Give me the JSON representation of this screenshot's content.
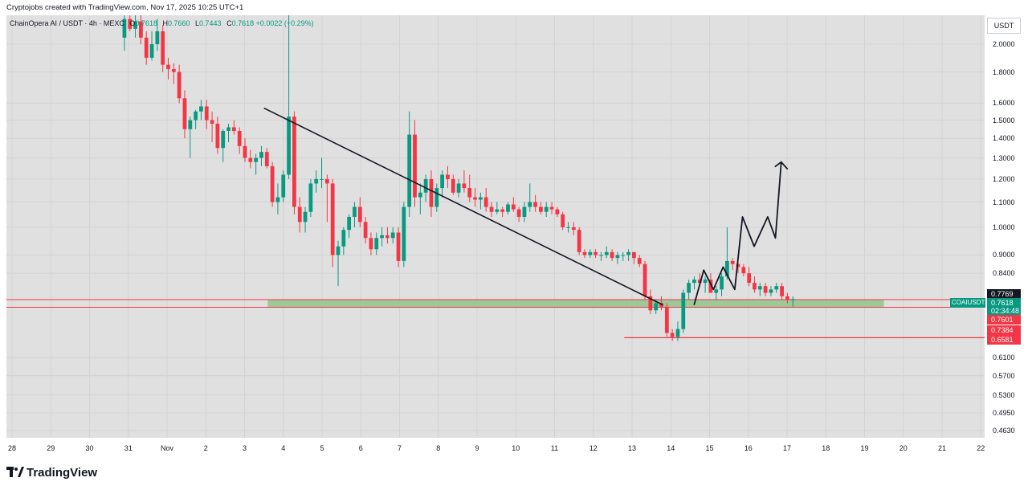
{
  "header": {
    "text": "Cryptojobs created with TradingView.com, Nov 17, 2025 10:25 UTC+1"
  },
  "legend": {
    "symbol": "ChainOpera AI / USDT · 4h · MEXC",
    "o_label": "O",
    "o_value": "0.7618",
    "h_label": "H",
    "h_value": "0.7660",
    "l_label": "L",
    "l_value": "0.7443",
    "c_label": "C",
    "c_value": "0.7618",
    "change": "+0.0022 (+0.29%)"
  },
  "currency": "USDT",
  "ticker_label": "COAIUSDT",
  "footer": {
    "brand": "TradingView"
  },
  "colors": {
    "up": "#089981",
    "down": "#f23645",
    "zone": "#8fc48a",
    "line": "#131722",
    "bg": "#e0e0e0"
  },
  "chart_data": {
    "type": "candlestick",
    "scale": "log",
    "title": "ChainOpera AI / USDT · 4h · MEXC",
    "ylim": [
      0.45,
      2.3
    ],
    "x_ticks": [
      "28",
      "29",
      "30",
      "31",
      "Nov",
      "2",
      "3",
      "4",
      "5",
      "6",
      "7",
      "8",
      "9",
      "10",
      "11",
      "12",
      "13",
      "14",
      "15",
      "16",
      "17",
      "18",
      "19",
      "20",
      "21",
      "22"
    ],
    "y_ticks": [
      "2.0000",
      "1.8000",
      "1.6000",
      "1.5000",
      "1.4000",
      "1.3000",
      "1.2000",
      "1.1000",
      "1.0000",
      "0.9000",
      "0.8400",
      "0.6100",
      "0.5700",
      "0.5300",
      "0.4950",
      "0.4630"
    ],
    "price_badges": [
      {
        "label": "0.7769",
        "value": 0.7769,
        "kind": "neutral"
      },
      {
        "label": "0.7618",
        "value": 0.7618,
        "kind": "current"
      },
      {
        "label": "02:34:48",
        "value": 0.7618,
        "kind": "countdown"
      },
      {
        "label": "0.7601",
        "value": 0.7601,
        "kind": "down"
      },
      {
        "label": "0.7384",
        "value": 0.7384,
        "kind": "down"
      },
      {
        "label": "0.6581",
        "value": 0.6581,
        "kind": "down"
      }
    ],
    "support_zone": {
      "from": 0.7384,
      "to": 0.7601
    },
    "support_line": 0.6581,
    "trendline": {
      "from": {
        "x": 6.5,
        "y": 1.57
      },
      "to": {
        "x": 16.8,
        "y": 0.745
      }
    },
    "projection": [
      {
        "x": 17.6,
        "y": 0.745
      },
      {
        "x": 17.85,
        "y": 0.85
      },
      {
        "x": 18.1,
        "y": 0.79
      },
      {
        "x": 18.35,
        "y": 0.86
      },
      {
        "x": 18.65,
        "y": 0.79
      },
      {
        "x": 18.85,
        "y": 1.04
      },
      {
        "x": 19.15,
        "y": 0.93
      },
      {
        "x": 19.5,
        "y": 1.04
      },
      {
        "x": 19.7,
        "y": 0.96
      },
      {
        "x": 19.85,
        "y": 1.28
      }
    ],
    "candles": [
      [
        2.05,
        2.3,
        1.95,
        2.2
      ],
      [
        2.2,
        2.28,
        2.1,
        2.12
      ],
      [
        2.12,
        2.25,
        2.05,
        2.18
      ],
      [
        2.18,
        2.3,
        2.0,
        2.05
      ],
      [
        2.05,
        2.1,
        1.85,
        1.9
      ],
      [
        1.9,
        2.1,
        1.88,
        2.0
      ],
      [
        2.0,
        2.2,
        1.95,
        2.1
      ],
      [
        2.1,
        2.15,
        1.8,
        1.85
      ],
      [
        1.85,
        1.9,
        1.75,
        1.82
      ],
      [
        1.82,
        1.86,
        1.72,
        1.8
      ],
      [
        1.8,
        1.85,
        1.6,
        1.63
      ],
      [
        1.63,
        1.68,
        1.4,
        1.45
      ],
      [
        1.45,
        1.52,
        1.3,
        1.5
      ],
      [
        1.5,
        1.56,
        1.45,
        1.55
      ],
      [
        1.55,
        1.62,
        1.5,
        1.58
      ],
      [
        1.58,
        1.62,
        1.45,
        1.5
      ],
      [
        1.5,
        1.55,
        1.38,
        1.48
      ],
      [
        1.48,
        1.52,
        1.32,
        1.35
      ],
      [
        1.35,
        1.45,
        1.28,
        1.44
      ],
      [
        1.44,
        1.48,
        1.38,
        1.46
      ],
      [
        1.46,
        1.5,
        1.42,
        1.44
      ],
      [
        1.44,
        1.46,
        1.32,
        1.36
      ],
      [
        1.36,
        1.4,
        1.28,
        1.3
      ],
      [
        1.3,
        1.34,
        1.25,
        1.28
      ],
      [
        1.28,
        1.32,
        1.22,
        1.3
      ],
      [
        1.3,
        1.36,
        1.26,
        1.33
      ],
      [
        1.33,
        1.35,
        1.25,
        1.26
      ],
      [
        1.26,
        1.28,
        1.08,
        1.1
      ],
      [
        1.1,
        1.18,
        1.05,
        1.12
      ],
      [
        1.12,
        1.24,
        1.1,
        1.22
      ],
      [
        1.22,
        2.3,
        1.2,
        1.52
      ],
      [
        1.52,
        1.55,
        1.05,
        1.08
      ],
      [
        1.08,
        1.12,
        0.98,
        1.02
      ],
      [
        1.02,
        1.08,
        0.98,
        1.06
      ],
      [
        1.06,
        1.2,
        1.04,
        1.18
      ],
      [
        1.18,
        1.24,
        1.14,
        1.2
      ],
      [
        1.2,
        1.3,
        1.16,
        1.2
      ],
      [
        1.2,
        1.22,
        1.02,
        1.18
      ],
      [
        1.18,
        1.2,
        0.86,
        0.9
      ],
      [
        0.9,
        0.95,
        0.8,
        0.93
      ],
      [
        0.93,
        1.0,
        0.9,
        0.99
      ],
      [
        0.99,
        1.05,
        0.96,
        1.04
      ],
      [
        1.04,
        1.1,
        1.0,
        1.08
      ],
      [
        1.08,
        1.12,
        1.0,
        1.02
      ],
      [
        1.02,
        1.04,
        0.94,
        0.96
      ],
      [
        0.96,
        0.98,
        0.9,
        0.92
      ],
      [
        0.92,
        0.98,
        0.9,
        0.96
      ],
      [
        0.96,
        1.0,
        0.93,
        0.97
      ],
      [
        0.97,
        1.0,
        0.94,
        0.96
      ],
      [
        0.96,
        1.0,
        0.94,
        0.98
      ],
      [
        0.98,
        1.0,
        0.86,
        0.88
      ],
      [
        0.88,
        1.1,
        0.86,
        1.08
      ],
      [
        1.08,
        1.55,
        1.04,
        1.42
      ],
      [
        1.42,
        1.5,
        1.08,
        1.12
      ],
      [
        1.12,
        1.18,
        1.05,
        1.14
      ],
      [
        1.14,
        1.22,
        1.1,
        1.2
      ],
      [
        1.2,
        1.24,
        1.04,
        1.08
      ],
      [
        1.08,
        1.18,
        1.06,
        1.16
      ],
      [
        1.16,
        1.24,
        1.12,
        1.22
      ],
      [
        1.22,
        1.26,
        1.16,
        1.2
      ],
      [
        1.2,
        1.22,
        1.13,
        1.14
      ],
      [
        1.14,
        1.2,
        1.12,
        1.18
      ],
      [
        1.18,
        1.24,
        1.14,
        1.16
      ],
      [
        1.16,
        1.22,
        1.1,
        1.12
      ],
      [
        1.12,
        1.16,
        1.08,
        1.11
      ],
      [
        1.11,
        1.14,
        1.07,
        1.12
      ],
      [
        1.12,
        1.16,
        1.06,
        1.08
      ],
      [
        1.08,
        1.1,
        1.04,
        1.06
      ],
      [
        1.06,
        1.1,
        1.05,
        1.07
      ],
      [
        1.07,
        1.08,
        1.04,
        1.06
      ],
      [
        1.06,
        1.1,
        1.05,
        1.09
      ],
      [
        1.09,
        1.12,
        1.06,
        1.07
      ],
      [
        1.07,
        1.08,
        1.02,
        1.04
      ],
      [
        1.04,
        1.1,
        1.02,
        1.08
      ],
      [
        1.08,
        1.18,
        1.06,
        1.1
      ],
      [
        1.1,
        1.13,
        1.06,
        1.08
      ],
      [
        1.08,
        1.1,
        1.05,
        1.06
      ],
      [
        1.06,
        1.1,
        1.04,
        1.08
      ],
      [
        1.08,
        1.1,
        1.05,
        1.07
      ],
      [
        1.07,
        1.08,
        1.04,
        1.05
      ],
      [
        1.05,
        1.06,
        0.99,
        1.0
      ],
      [
        1.0,
        1.02,
        0.98,
        1.0
      ],
      [
        1.0,
        1.02,
        0.97,
        0.99
      ],
      [
        0.99,
        1.0,
        0.9,
        0.91
      ],
      [
        0.91,
        0.92,
        0.89,
        0.9
      ],
      [
        0.9,
        0.92,
        0.89,
        0.91
      ],
      [
        0.91,
        0.92,
        0.89,
        0.9
      ],
      [
        0.9,
        0.91,
        0.88,
        0.9
      ],
      [
        0.9,
        0.93,
        0.89,
        0.91
      ],
      [
        0.91,
        0.92,
        0.88,
        0.89
      ],
      [
        0.89,
        0.91,
        0.87,
        0.9
      ],
      [
        0.9,
        0.91,
        0.88,
        0.9
      ],
      [
        0.9,
        0.92,
        0.88,
        0.91
      ],
      [
        0.91,
        0.91,
        0.87,
        0.89
      ],
      [
        0.89,
        0.9,
        0.86,
        0.87
      ],
      [
        0.87,
        0.88,
        0.76,
        0.77
      ],
      [
        0.77,
        0.79,
        0.72,
        0.73
      ],
      [
        0.73,
        0.76,
        0.72,
        0.75
      ],
      [
        0.75,
        0.77,
        0.73,
        0.74
      ],
      [
        0.74,
        0.75,
        0.66,
        0.67
      ],
      [
        0.67,
        0.68,
        0.65,
        0.66
      ],
      [
        0.66,
        0.7,
        0.65,
        0.68
      ],
      [
        0.68,
        0.79,
        0.67,
        0.78
      ],
      [
        0.78,
        0.82,
        0.76,
        0.81
      ],
      [
        0.81,
        0.83,
        0.79,
        0.82
      ],
      [
        0.82,
        0.84,
        0.8,
        0.81
      ],
      [
        0.81,
        0.83,
        0.78,
        0.82
      ],
      [
        0.82,
        0.84,
        0.79,
        0.78
      ],
      [
        0.78,
        0.8,
        0.76,
        0.79
      ],
      [
        0.79,
        0.84,
        0.77,
        0.83
      ],
      [
        0.83,
        1.0,
        0.82,
        0.88
      ],
      [
        0.88,
        0.89,
        0.85,
        0.87
      ],
      [
        0.87,
        0.88,
        0.84,
        0.86
      ],
      [
        0.86,
        0.87,
        0.83,
        0.84
      ],
      [
        0.84,
        0.86,
        0.8,
        0.81
      ],
      [
        0.81,
        0.83,
        0.78,
        0.79
      ],
      [
        0.79,
        0.81,
        0.77,
        0.8
      ],
      [
        0.8,
        0.81,
        0.77,
        0.78
      ],
      [
        0.78,
        0.8,
        0.77,
        0.79
      ],
      [
        0.79,
        0.81,
        0.78,
        0.8
      ],
      [
        0.8,
        0.81,
        0.76,
        0.77
      ],
      [
        0.77,
        0.78,
        0.75,
        0.76
      ],
      [
        0.76,
        0.77,
        0.74,
        0.762
      ]
    ]
  }
}
